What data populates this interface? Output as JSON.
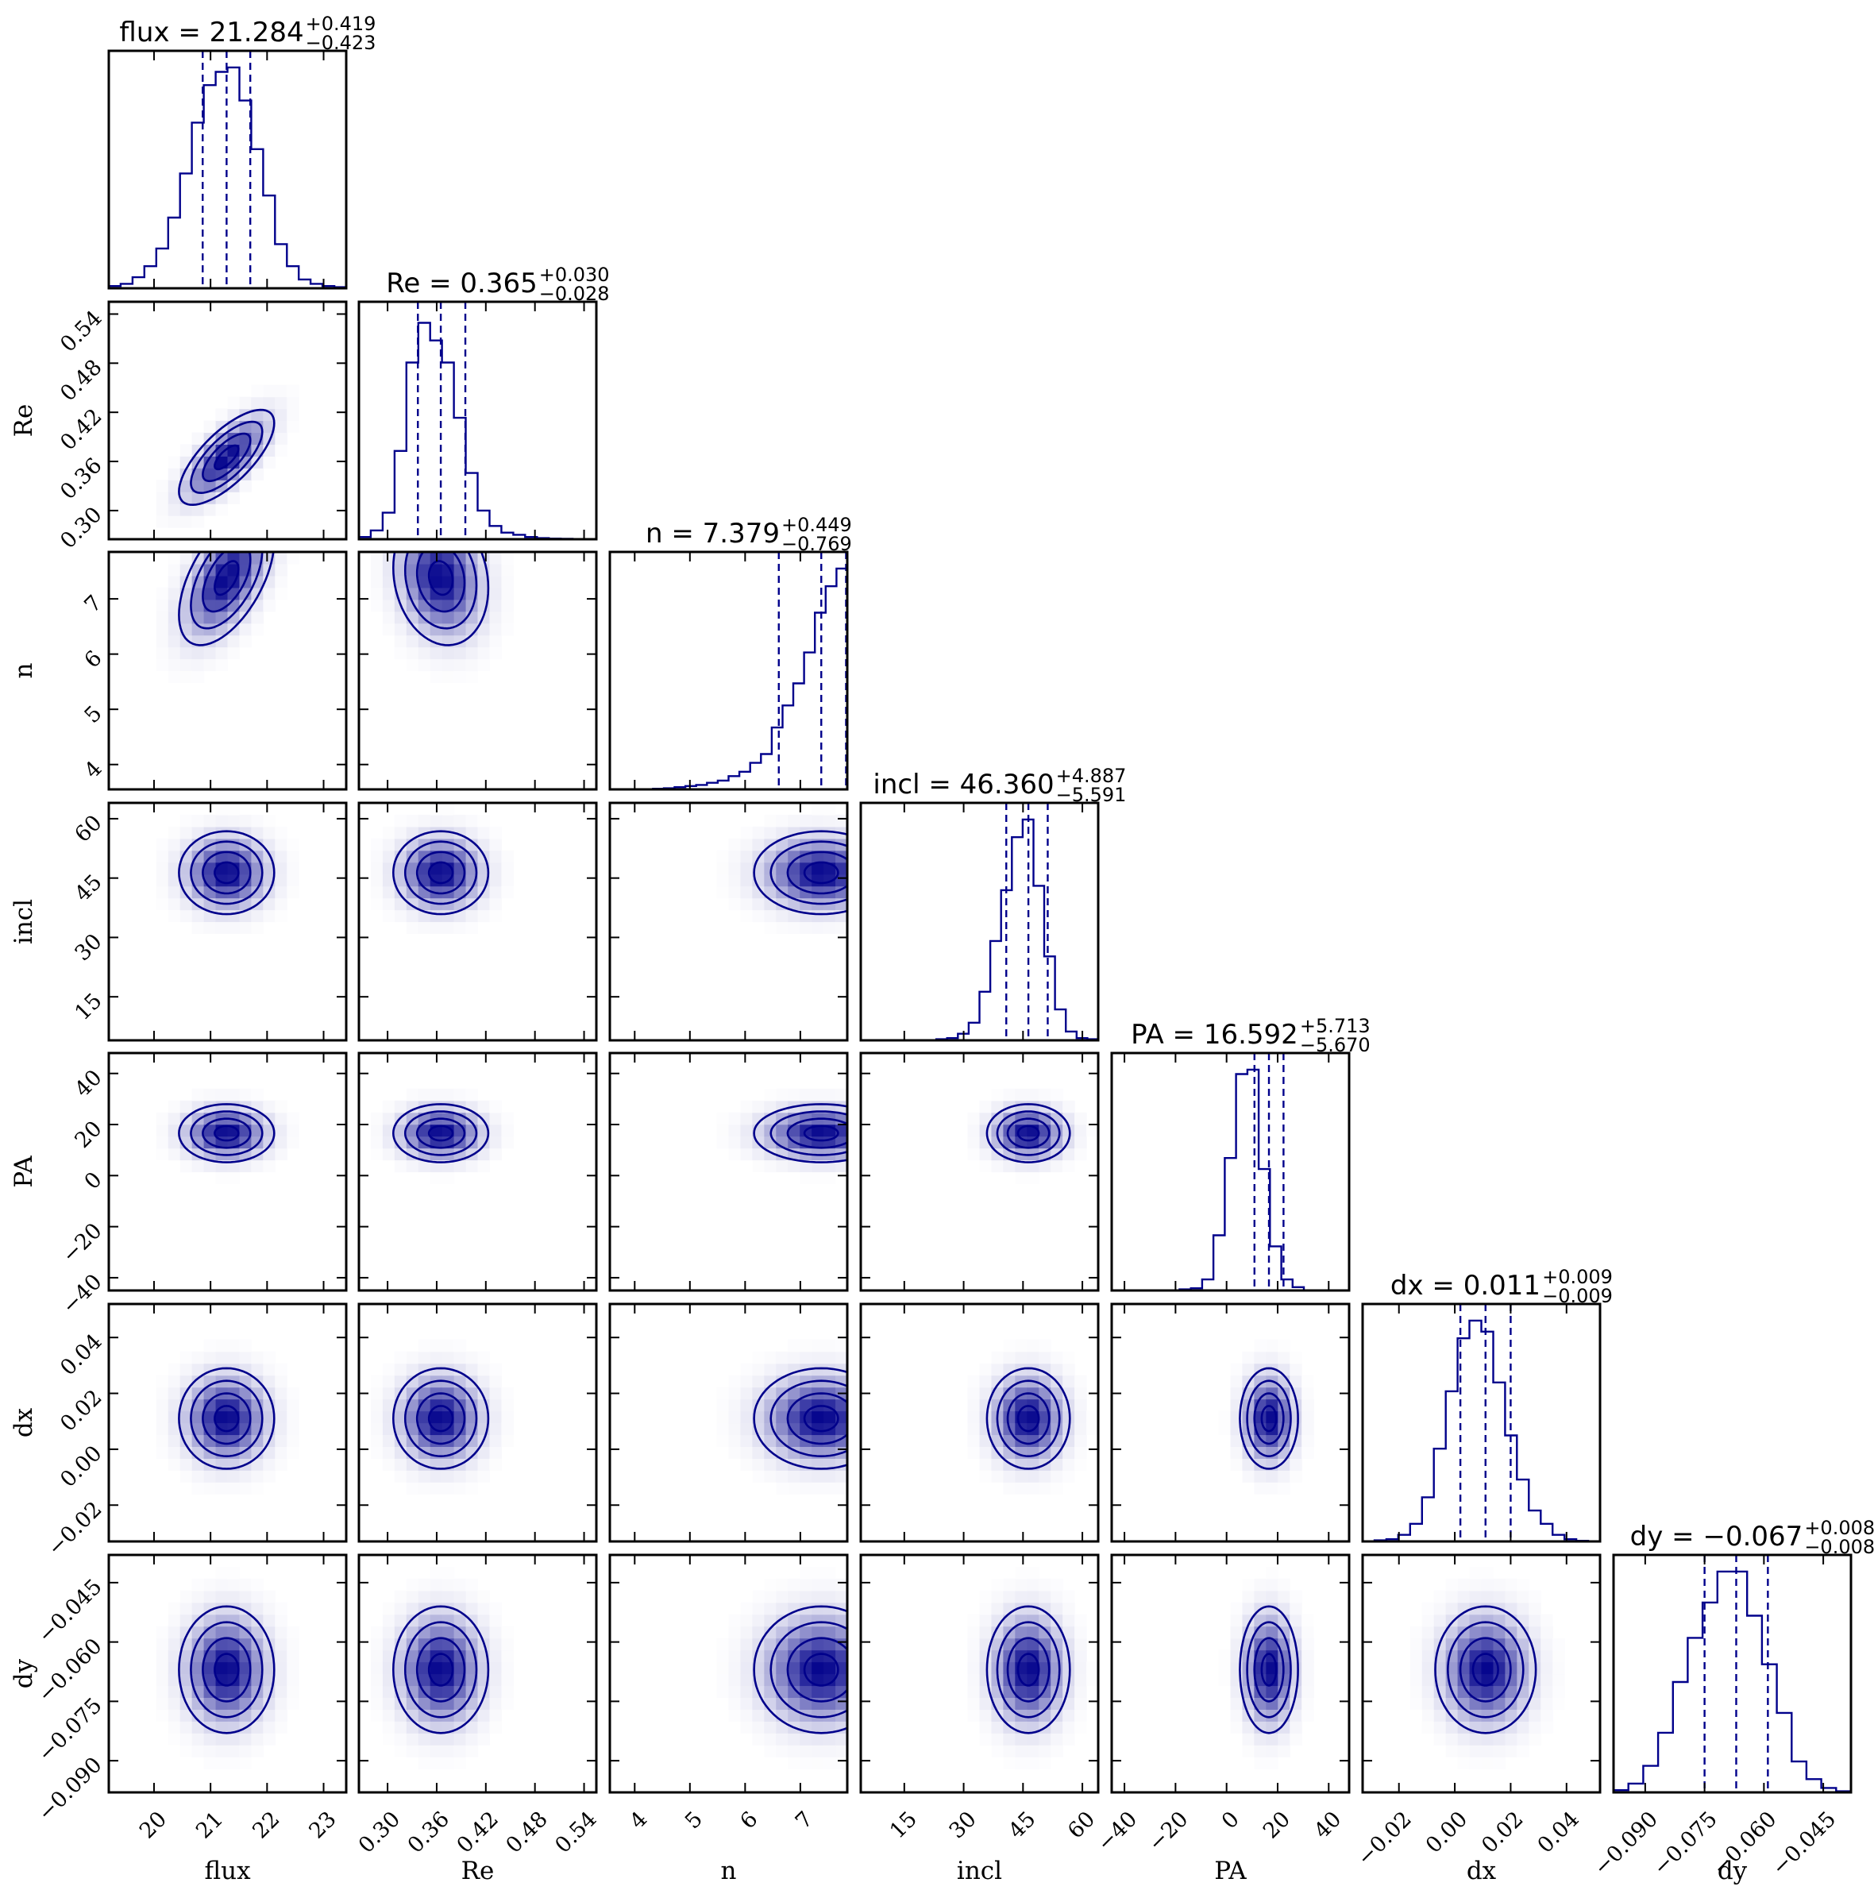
{
  "chart_data": {
    "type": "corner",
    "color": "#00008b",
    "parameters": [
      {
        "name": "flux",
        "label": "flux",
        "median": 21.284,
        "plus": 0.419,
        "minus": 0.423,
        "median_text": "21.284",
        "plus_text": "+0.419",
        "minus_text": "−0.423",
        "range": [
          19.2,
          23.4
        ],
        "ticks": [
          20,
          21,
          22,
          23
        ],
        "tick_labels": [
          "20",
          "21",
          "22",
          "23"
        ]
      },
      {
        "name": "Re",
        "label": "Re",
        "median": 0.365,
        "plus": 0.03,
        "minus": 0.028,
        "median_text": "0.365",
        "plus_text": "+0.030",
        "minus_text": "−0.028",
        "range": [
          0.265,
          0.555
        ],
        "ticks": [
          0.3,
          0.36,
          0.42,
          0.48,
          0.54
        ],
        "tick_labels": [
          "0.30",
          "0.36",
          "0.42",
          "0.48",
          "0.54"
        ]
      },
      {
        "name": "n",
        "label": "n",
        "median": 7.379,
        "plus": 0.449,
        "minus": 0.769,
        "median_text": "7.379",
        "plus_text": "+0.449",
        "minus_text": "−0.769",
        "range": [
          3.55,
          7.85
        ],
        "ticks": [
          4,
          5,
          6,
          7
        ],
        "tick_labels": [
          "4",
          "5",
          "6",
          "7"
        ]
      },
      {
        "name": "incl",
        "label": "incl",
        "median": 46.36,
        "plus": 4.887,
        "minus": 5.591,
        "median_text": "46.360",
        "plus_text": "+4.887",
        "minus_text": "−5.591",
        "range": [
          4,
          64
        ],
        "ticks": [
          15,
          30,
          45,
          60
        ],
        "tick_labels": [
          "15",
          "30",
          "45",
          "60"
        ]
      },
      {
        "name": "PA",
        "label": "PA",
        "median": 16.592,
        "plus": 5.713,
        "minus": 5.67,
        "median_text": "16.592",
        "plus_text": "+5.713",
        "minus_text": "−5.670",
        "range": [
          -45,
          48
        ],
        "ticks": [
          -40,
          -20,
          0,
          20,
          40
        ],
        "tick_labels": [
          "−40",
          "−20",
          "0",
          "20",
          "40"
        ]
      },
      {
        "name": "dx",
        "label": "dx",
        "median": 0.011,
        "plus": 0.009,
        "minus": 0.009,
        "median_text": "0.011",
        "plus_text": "+0.009",
        "minus_text": "−0.009",
        "range": [
          -0.033,
          0.052
        ],
        "ticks": [
          -0.02,
          0.0,
          0.02,
          0.04
        ],
        "tick_labels": [
          "−0.02",
          "0.00",
          "0.02",
          "0.04"
        ]
      },
      {
        "name": "dy",
        "label": "dy",
        "median": -0.067,
        "plus": 0.008,
        "minus": 0.008,
        "median_text": "−0.067",
        "plus_text": "+0.008",
        "minus_text": "−0.008",
        "range": [
          -0.098,
          -0.038
        ],
        "ticks": [
          -0.09,
          -0.075,
          -0.06,
          -0.045
        ],
        "tick_labels": [
          "−0.090",
          "−0.075",
          "−0.060",
          "−0.045"
        ]
      }
    ],
    "histograms": [
      [
        0.01,
        0.02,
        0.05,
        0.1,
        0.18,
        0.32,
        0.52,
        0.75,
        0.92,
        0.98,
        1.0,
        0.85,
        0.63,
        0.42,
        0.2,
        0.1,
        0.04,
        0.02,
        0.01,
        0.005
      ],
      [
        0.01,
        0.04,
        0.12,
        0.4,
        0.8,
        0.98,
        0.9,
        0.8,
        0.55,
        0.3,
        0.13,
        0.06,
        0.03,
        0.02,
        0.01,
        0.005,
        0.003,
        0.002,
        0.001,
        0.001
      ],
      [
        0.0,
        0.0,
        0.0,
        0.0,
        0.003,
        0.005,
        0.01,
        0.015,
        0.02,
        0.03,
        0.04,
        0.06,
        0.08,
        0.12,
        0.16,
        0.28,
        0.38,
        0.48,
        0.62,
        0.8,
        0.92,
        1.0
      ],
      [
        0.0,
        0.0,
        0.0,
        0.0,
        0.0,
        0.0,
        0.0,
        0.005,
        0.01,
        0.03,
        0.08,
        0.22,
        0.45,
        0.68,
        0.92,
        1.0,
        0.7,
        0.38,
        0.14,
        0.04,
        0.01,
        0.005
      ],
      [
        0.0,
        0.0,
        0.0,
        0.0,
        0.0,
        0.0,
        0.005,
        0.01,
        0.05,
        0.25,
        0.6,
        0.98,
        1.0,
        0.55,
        0.2,
        0.05,
        0.015,
        0.0,
        0.0,
        0.0,
        0.0
      ],
      [
        0.0,
        0.005,
        0.01,
        0.03,
        0.08,
        0.2,
        0.42,
        0.68,
        0.92,
        1.0,
        0.95,
        0.72,
        0.48,
        0.28,
        0.14,
        0.08,
        0.03,
        0.01,
        0.003,
        0.0
      ],
      [
        0.01,
        0.04,
        0.12,
        0.27,
        0.5,
        0.7,
        0.86,
        1.0,
        1.0,
        0.8,
        0.58,
        0.36,
        0.14,
        0.06,
        0.02,
        0.005
      ]
    ]
  }
}
